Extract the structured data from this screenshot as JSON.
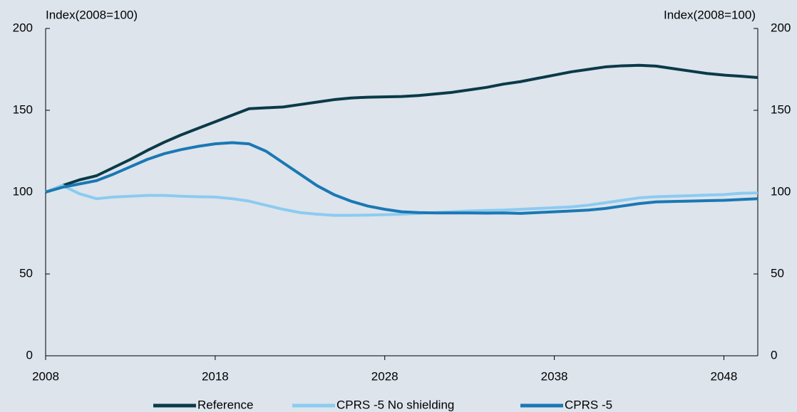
{
  "chart_data": {
    "type": "line",
    "y_label": "Index(2008=100)",
    "y2_label": "Index(2008=100)",
    "x": [
      2008,
      2009,
      2010,
      2011,
      2012,
      2013,
      2014,
      2015,
      2016,
      2017,
      2018,
      2019,
      2020,
      2021,
      2022,
      2023,
      2024,
      2025,
      2026,
      2027,
      2028,
      2029,
      2030,
      2031,
      2032,
      2033,
      2034,
      2035,
      2036,
      2037,
      2038,
      2039,
      2040,
      2041,
      2042,
      2043,
      2044,
      2045,
      2046,
      2047,
      2048,
      2049,
      2050
    ],
    "xlim": [
      2008,
      2050
    ],
    "xticks": [
      2008,
      2018,
      2028,
      2038,
      2048
    ],
    "ylim": [
      0,
      200
    ],
    "yticks": [
      0,
      50,
      100,
      150,
      200
    ],
    "y2lim": [
      0,
      200
    ],
    "y2ticks": [
      0,
      50,
      100,
      150,
      200
    ],
    "series": [
      {
        "name": "Reference",
        "color": "#0b3a48",
        "values": [
          100,
          104,
          107.5,
          110,
          115,
          120,
          125.5,
          130.5,
          135,
          139,
          143,
          147,
          151,
          151.5,
          152,
          153.5,
          155,
          156.5,
          157.5,
          158,
          158.2,
          158.4,
          159,
          160,
          161,
          162.5,
          164,
          166,
          167.5,
          169.5,
          171.5,
          173.5,
          175,
          176.5,
          177.2,
          177.5,
          177,
          175.5,
          174,
          172.5,
          171.5,
          170.8,
          170
        ]
      },
      {
        "name": "CPRS -5 No shielding",
        "color": "#8ccbf0",
        "values": [
          100,
          104,
          99,
          96,
          97,
          97.5,
          98,
          98,
          97.5,
          97.2,
          97,
          96,
          94.5,
          92,
          89.5,
          87.5,
          86.5,
          85.8,
          85.8,
          86,
          86.2,
          86.5,
          87,
          87.5,
          88,
          88.5,
          88.8,
          89,
          89.5,
          90,
          90.5,
          91,
          92,
          93.5,
          95,
          96.5,
          97.2,
          97.5,
          97.8,
          98.2,
          98.5,
          99.3,
          99.5
        ]
      },
      {
        "name": "CPRS -5",
        "color": "#1a78b4",
        "values": [
          100,
          103,
          105,
          107,
          111,
          115.5,
          120,
          123.5,
          126,
          128,
          129.5,
          130.2,
          129.5,
          125,
          118,
          111,
          104,
          98.5,
          94.5,
          91.5,
          89.5,
          88,
          87.5,
          87.3,
          87.3,
          87.3,
          87.2,
          87.3,
          87,
          87.5,
          88,
          88.5,
          89,
          90,
          91.5,
          93,
          94,
          94.3,
          94.5,
          94.8,
          95,
          95.5,
          96
        ]
      }
    ]
  }
}
